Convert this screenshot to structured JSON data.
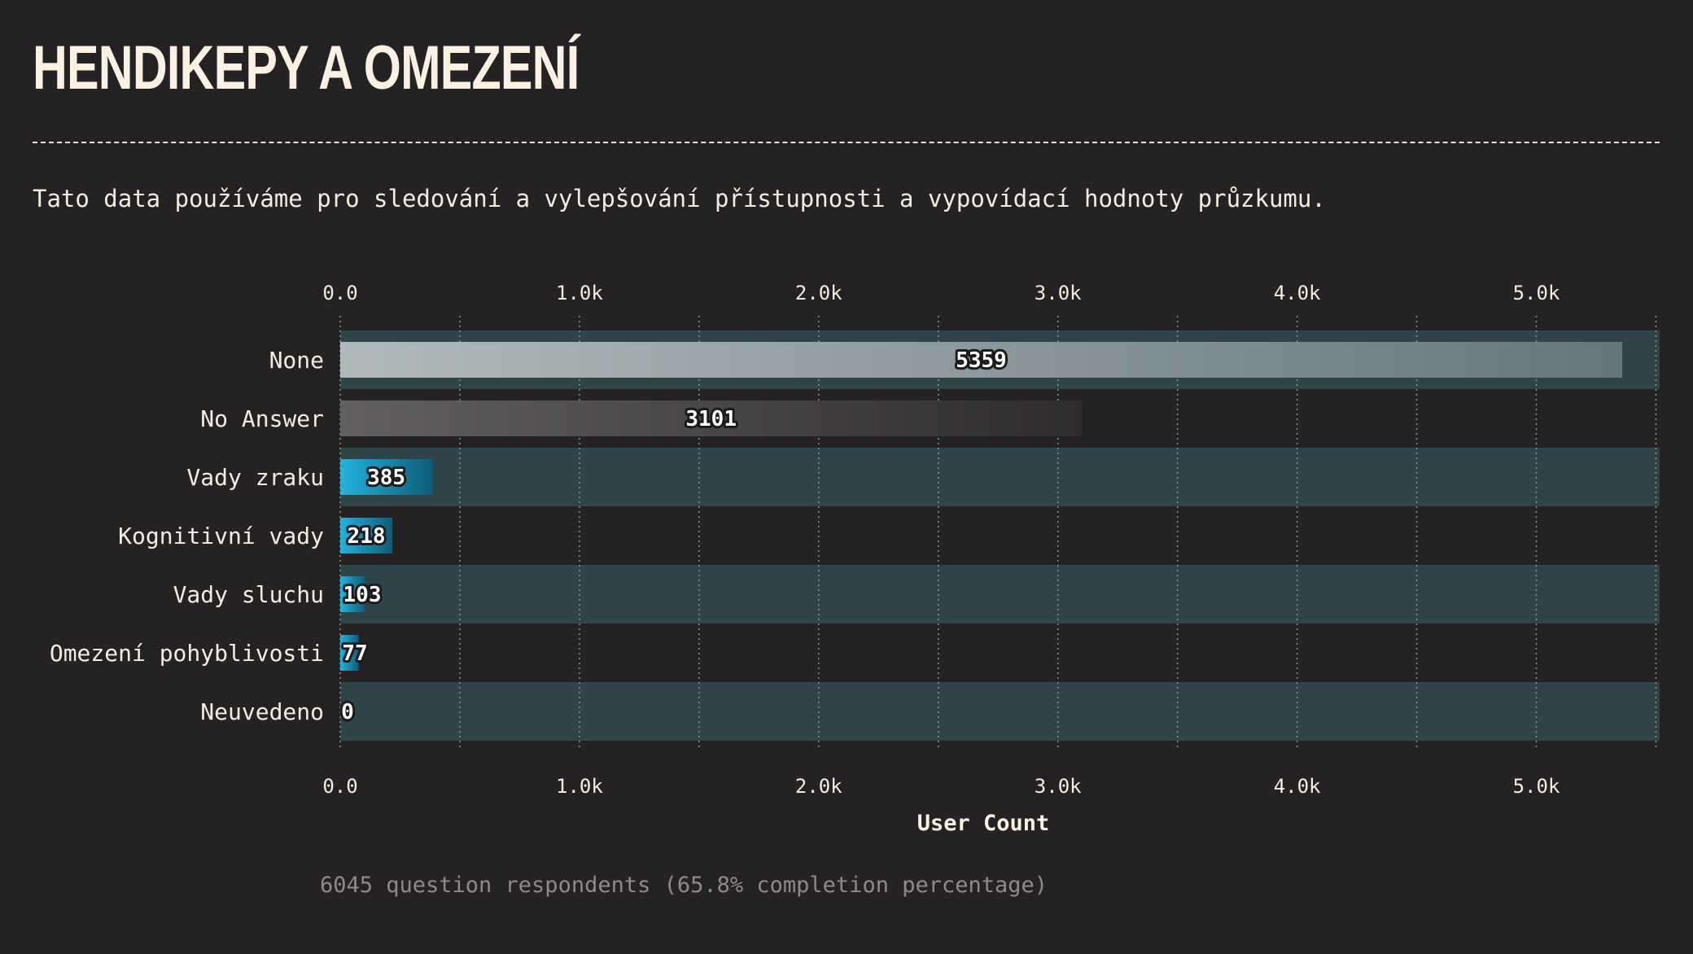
{
  "header": {
    "title": "HENDIKEPY A OMEZENÍ",
    "subtitle": "Tato data používáme pro sledování a vylepšování přístupnosti a vypovídací hodnoty průzkumu."
  },
  "footnote": "6045 question respondents (65.8% completion percentage)",
  "colors": {
    "background": "#252223",
    "row_band": "#2f4448",
    "none_bar": "#a9b4b6",
    "no_answer_bar": "#5f5c5d",
    "accent_bar": "#20a9d2",
    "text": "#f3ece0"
  },
  "chart_data": {
    "type": "bar",
    "orientation": "horizontal",
    "categories": [
      "None",
      "No Answer",
      "Vady zraku",
      "Kognitivní vady",
      "Vady sluchu",
      "Omezení pohyblivosti",
      "Neuvedeno"
    ],
    "values": [
      5359,
      3101,
      385,
      218,
      103,
      77,
      0
    ],
    "value_labels": [
      "5359",
      "3101",
      "385",
      "218",
      "103",
      "77",
      "0"
    ],
    "xlabel": "User Count",
    "ylabel": "",
    "xlim": [
      0,
      5540
    ],
    "x_ticks": [
      0,
      1000,
      2000,
      3000,
      4000,
      5000
    ],
    "x_tick_labels": [
      "0.0",
      "1.0k",
      "2.0k",
      "3.0k",
      "4.0k",
      "5.0k"
    ],
    "x_tick_positions": "top and bottom",
    "grid": "dotted vertical lines every 500",
    "legend": "none"
  }
}
